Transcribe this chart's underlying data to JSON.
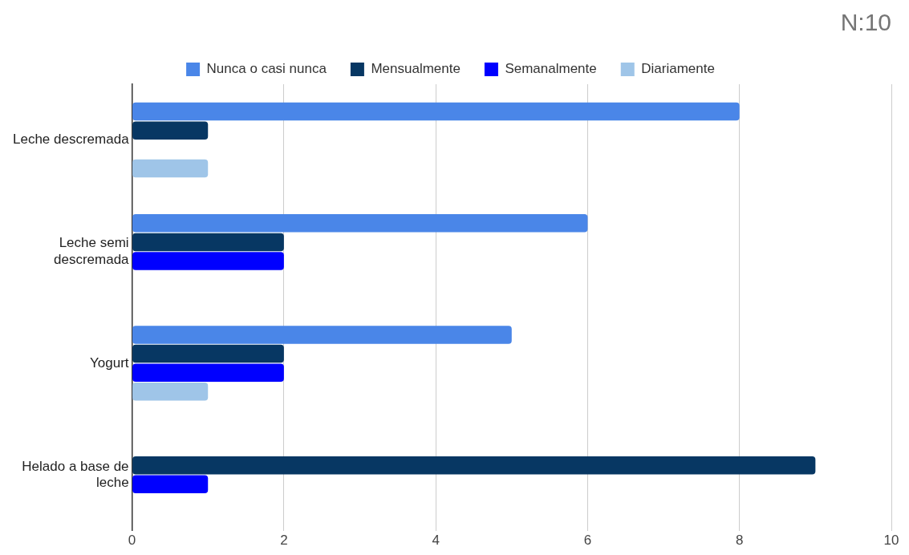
{
  "chart_data": {
    "type": "bar",
    "orientation": "horizontal",
    "title": "N:10",
    "categories": [
      "Leche descremada",
      "Leche semi descremada",
      "Yogurt",
      "Helado a base de leche"
    ],
    "series": [
      {
        "name": "Nunca o casi nunca",
        "color": "#4a86e8",
        "values": [
          8,
          6,
          5,
          0
        ]
      },
      {
        "name": "Mensualmente",
        "color": "#073763",
        "values": [
          1,
          2,
          2,
          9
        ]
      },
      {
        "name": "Semanalmente",
        "color": "#0000ff",
        "values": [
          0,
          2,
          2,
          1
        ]
      },
      {
        "name": "Diariamente",
        "color": "#9fc5e8",
        "values": [
          1,
          0,
          1,
          0
        ]
      }
    ],
    "xlim": [
      0,
      10
    ],
    "xticks": [
      0,
      2,
      4,
      6,
      8,
      10
    ],
    "grid": "x",
    "legend": "top"
  }
}
